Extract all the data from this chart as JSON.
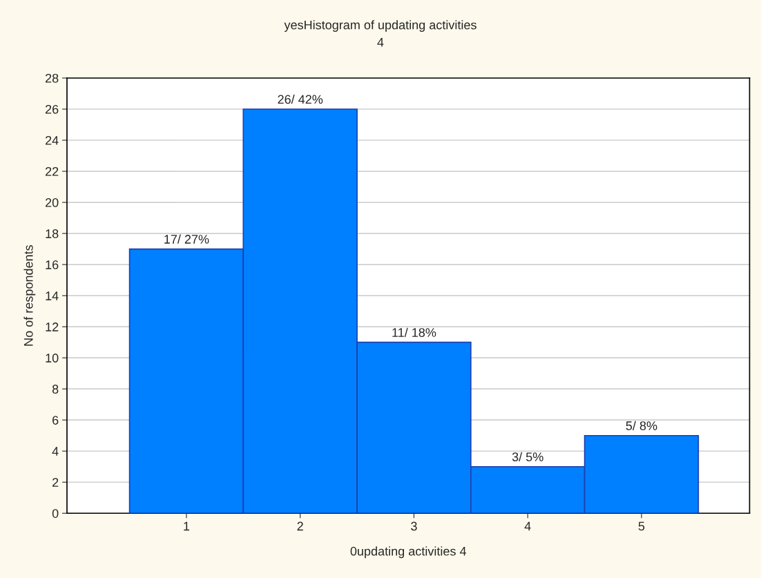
{
  "chart_data": {
    "type": "bar",
    "title": "yesHistogram of updating activities",
    "subtitle": "4",
    "xlabel": "0updating activities 4",
    "ylabel": "No of respondents",
    "categories": [
      "1",
      "2",
      "3",
      "4",
      "5"
    ],
    "values": [
      17,
      26,
      11,
      3,
      5
    ],
    "value_labels": [
      "17/ 27%",
      "26/ 42%",
      "11/ 18%",
      "3/ 5%",
      "5/ 8%"
    ],
    "color": "#0080ff",
    "ylim": [
      0,
      28
    ],
    "yticks": [
      0,
      2,
      4,
      6,
      8,
      10,
      12,
      14,
      16,
      18,
      20,
      22,
      24,
      26,
      28
    ],
    "grid": "y"
  }
}
